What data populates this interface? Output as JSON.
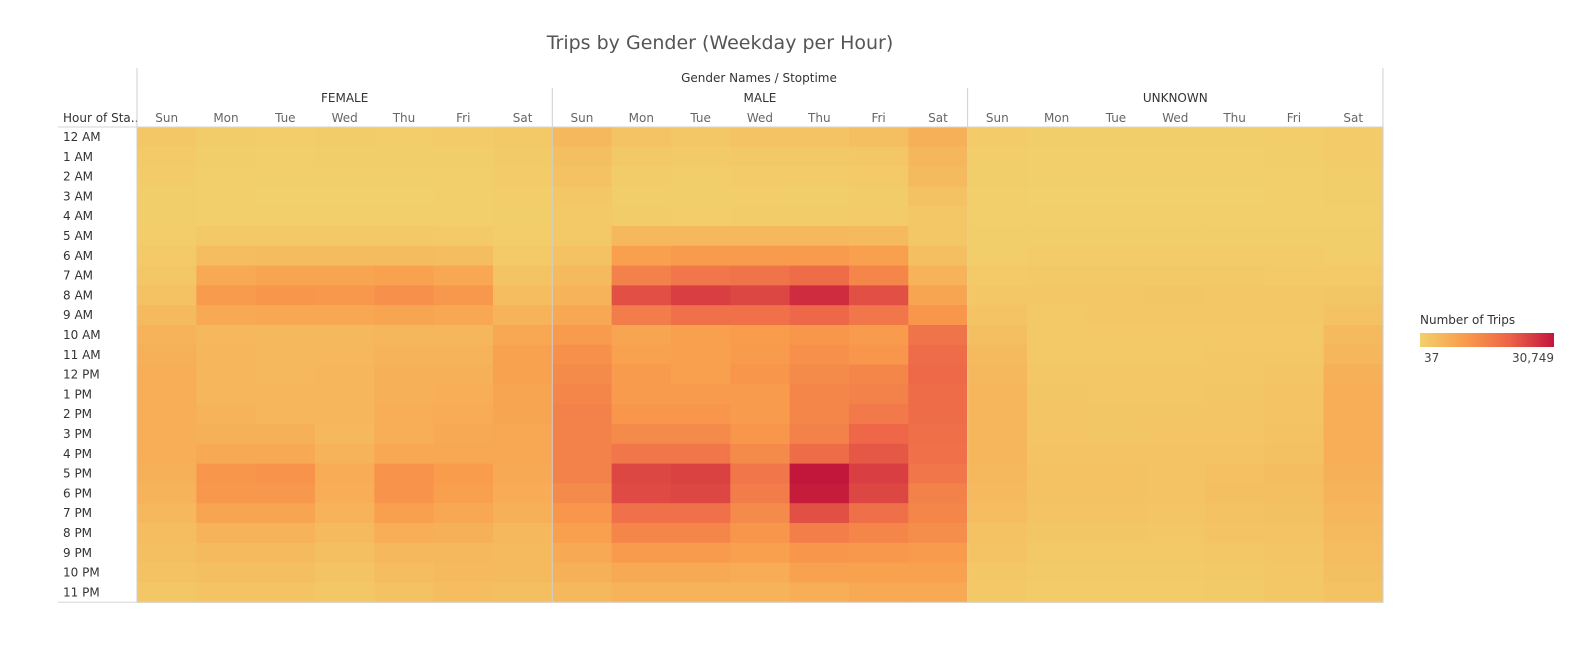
{
  "chart_data": {
    "type": "heatmap",
    "title": "Trips by Gender (Weekday per Hour)",
    "column_header": "Gender Names  /  Stoptime",
    "row_header": "Hour of Sta..",
    "groups": [
      "FEMALE",
      "MALE",
      "UNKNOWN"
    ],
    "days": [
      "Sun",
      "Mon",
      "Tue",
      "Wed",
      "Thu",
      "Fri",
      "Sat"
    ],
    "hours": [
      "12 AM",
      "1 AM",
      "2 AM",
      "3 AM",
      "4 AM",
      "5 AM",
      "6 AM",
      "7 AM",
      "8 AM",
      "9 AM",
      "10 AM",
      "11 AM",
      "12 PM",
      "1 PM",
      "2 PM",
      "3 PM",
      "4 PM",
      "5 PM",
      "6 PM",
      "7 PM",
      "8 PM",
      "9 PM",
      "10 PM",
      "11 PM"
    ],
    "legend": {
      "title": "Number of Trips",
      "min": 37,
      "max": 30749,
      "min_label": "37",
      "max_label": "30,749"
    },
    "colors": {
      "low": "#f2d06b",
      "mid": "#f99c4c",
      "high": "#ed6448",
      "max": "#c2163b"
    },
    "values": {
      "FEMALE": [
        [
          2000,
          800,
          700,
          800,
          700,
          900,
          1700
        ],
        [
          1300,
          400,
          300,
          400,
          350,
          500,
          1200
        ],
        [
          900,
          200,
          150,
          200,
          150,
          300,
          900
        ],
        [
          500,
          150,
          100,
          120,
          120,
          200,
          600
        ],
        [
          400,
          250,
          200,
          250,
          200,
          300,
          400
        ],
        [
          700,
          1500,
          1400,
          1500,
          1400,
          1300,
          700
        ],
        [
          1300,
          4000,
          4200,
          4300,
          4100,
          3800,
          1300
        ],
        [
          2000,
          8000,
          9000,
          9000,
          9500,
          8500,
          2500
        ],
        [
          3000,
          11000,
          12000,
          11500,
          13000,
          11500,
          4000
        ],
        [
          4500,
          8000,
          8500,
          8500,
          9000,
          8500,
          6000
        ],
        [
          6000,
          5000,
          5000,
          5000,
          5500,
          5500,
          8500
        ],
        [
          6500,
          5500,
          5000,
          5000,
          6000,
          6000,
          9500
        ],
        [
          7000,
          5500,
          5000,
          5500,
          6500,
          6500,
          9500
        ],
        [
          7000,
          5500,
          5500,
          5500,
          6500,
          7000,
          9000
        ],
        [
          7000,
          6000,
          5500,
          5500,
          7000,
          7500,
          9000
        ],
        [
          7000,
          6500,
          6500,
          5000,
          7000,
          8000,
          8500
        ],
        [
          7000,
          8000,
          8000,
          6000,
          8500,
          8500,
          8500
        ],
        [
          6500,
          12000,
          12500,
          7500,
          12500,
          10500,
          8000
        ],
        [
          6000,
          11500,
          11500,
          7000,
          12500,
          10000,
          7500
        ],
        [
          5000,
          9000,
          9000,
          6000,
          10000,
          8500,
          6500
        ],
        [
          4000,
          6000,
          6000,
          4500,
          7000,
          6500,
          5000
        ],
        [
          3500,
          4500,
          4500,
          3500,
          5000,
          5000,
          4500
        ],
        [
          3000,
          3500,
          3500,
          2500,
          4000,
          4500,
          4500
        ],
        [
          2000,
          2500,
          2500,
          2000,
          3000,
          4000,
          3500
        ]
      ],
      "MALE": [
        [
          5000,
          2500,
          2000,
          2500,
          2500,
          3500,
          6500
        ],
        [
          3500,
          1500,
          1200,
          1500,
          1500,
          2000,
          5500
        ],
        [
          3000,
          800,
          700,
          900,
          900,
          1300,
          4500
        ],
        [
          2000,
          500,
          500,
          600,
          500,
          800,
          3000
        ],
        [
          1500,
          800,
          700,
          800,
          800,
          900,
          2000
        ],
        [
          1500,
          5000,
          5000,
          5000,
          5000,
          4500,
          2000
        ],
        [
          3000,
          10000,
          11000,
          11000,
          11000,
          10000,
          3500
        ],
        [
          4500,
          16000,
          18000,
          18500,
          20000,
          15000,
          6000
        ],
        [
          6000,
          24000,
          26000,
          25000,
          28000,
          24000,
          9000
        ],
        [
          8500,
          17000,
          19000,
          19000,
          21000,
          18000,
          12000
        ],
        [
          11000,
          9000,
          10000,
          10500,
          12000,
          11000,
          18500
        ],
        [
          13000,
          9500,
          10000,
          11000,
          13000,
          12000,
          20000
        ],
        [
          14000,
          11000,
          10000,
          12000,
          14000,
          15000,
          20500
        ],
        [
          15000,
          11000,
          11000,
          11000,
          15000,
          16000,
          20000
        ],
        [
          16000,
          12000,
          12000,
          11000,
          15000,
          17500,
          20000
        ],
        [
          16000,
          14000,
          14000,
          12000,
          16000,
          21000,
          19500
        ],
        [
          16000,
          18000,
          18000,
          14000,
          20000,
          23000,
          19000
        ],
        [
          16000,
          25000,
          25500,
          18000,
          30749,
          26000,
          18000
        ],
        [
          14000,
          24500,
          25000,
          17000,
          30000,
          25000,
          16000
        ],
        [
          12000,
          19000,
          19000,
          14000,
          24000,
          19500,
          15000
        ],
        [
          10000,
          15000,
          15000,
          12000,
          16500,
          15000,
          13500
        ],
        [
          8000,
          11000,
          11000,
          10000,
          12000,
          11500,
          11000
        ],
        [
          6500,
          8000,
          8000,
          7500,
          9500,
          9500,
          9500
        ],
        [
          5000,
          6000,
          6000,
          6000,
          7000,
          8000,
          8000
        ]
      ],
      "UNKNOWN": [
        [
          1000,
          500,
          450,
          500,
          450,
          600,
          1100
        ],
        [
          700,
          300,
          250,
          300,
          250,
          350,
          900
        ],
        [
          500,
          150,
          150,
          150,
          150,
          200,
          700
        ],
        [
          300,
          100,
          100,
          100,
          100,
          150,
          500
        ],
        [
          250,
          150,
          150,
          150,
          150,
          150,
          250
        ],
        [
          350,
          500,
          500,
          500,
          500,
          450,
          350
        ],
        [
          700,
          900,
          900,
          900,
          900,
          850,
          700
        ],
        [
          1300,
          1400,
          1400,
          1500,
          1400,
          1300,
          1300
        ],
        [
          2000,
          2000,
          2000,
          2100,
          2000,
          1900,
          2200
        ],
        [
          2800,
          1700,
          1800,
          1800,
          1800,
          1800,
          3000
        ],
        [
          3500,
          1500,
          1500,
          1500,
          1600,
          1700,
          4500
        ],
        [
          4500,
          1700,
          1700,
          1700,
          1800,
          2000,
          5500
        ],
        [
          5000,
          2000,
          1800,
          1800,
          2000,
          2300,
          6500
        ],
        [
          5500,
          2200,
          2000,
          2000,
          2200,
          2500,
          7000
        ],
        [
          5500,
          2300,
          2100,
          2200,
          2300,
          2700,
          7000
        ],
        [
          5500,
          2400,
          2200,
          2300,
          2400,
          2900,
          7000
        ],
        [
          5500,
          2600,
          2500,
          2500,
          2700,
          3200,
          7000
        ],
        [
          5000,
          3000,
          3000,
          2800,
          3300,
          3700,
          6500
        ],
        [
          4500,
          3000,
          3000,
          2800,
          3500,
          3500,
          6000
        ],
        [
          4000,
          2700,
          2600,
          2400,
          3000,
          3200,
          5500
        ],
        [
          3000,
          2200,
          2100,
          2000,
          2500,
          2800,
          4500
        ],
        [
          2500,
          1700,
          1700,
          1600,
          2000,
          2400,
          4000
        ],
        [
          2000,
          1200,
          1200,
          1200,
          1500,
          2000,
          3500
        ],
        [
          1500,
          900,
          900,
          900,
          1200,
          1800,
          3000
        ]
      ]
    }
  }
}
